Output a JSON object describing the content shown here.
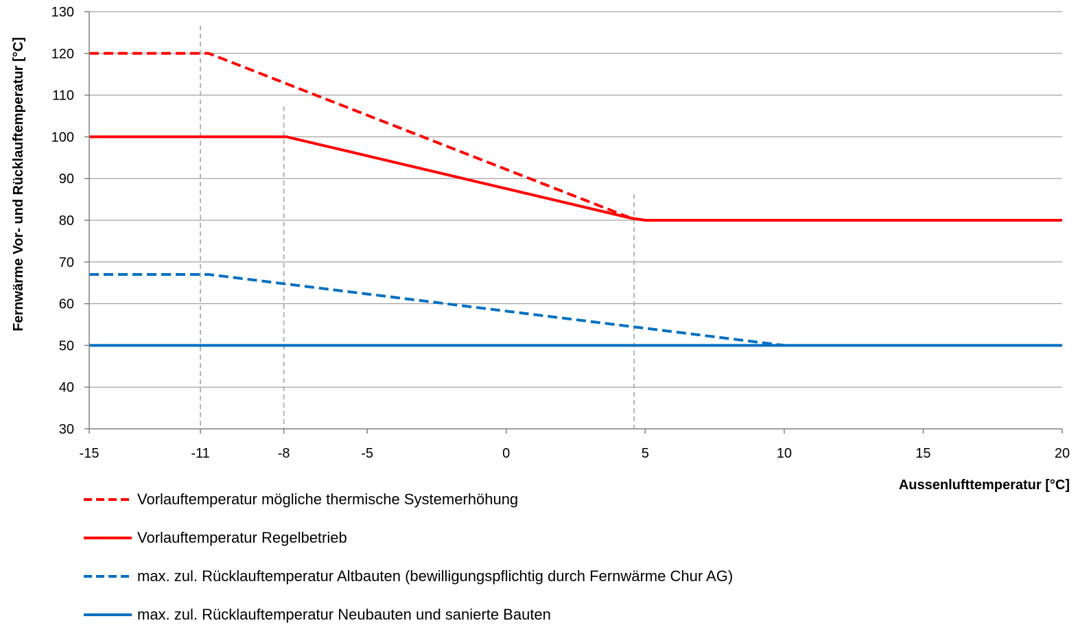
{
  "chart_data": {
    "type": "line",
    "xlabel": "Aussenlufttemperatur [°C]",
    "ylabel": "Fernwärme Vor- und Rücklauftemperatur [°C]",
    "xlim": [
      -15,
      20
    ],
    "ylim": [
      30,
      130
    ],
    "x_ticks": [
      "-15",
      "-11",
      "-8",
      "-5",
      "0",
      "5",
      "10",
      "15",
      "20"
    ],
    "y_ticks": [
      "30",
      "40",
      "50",
      "60",
      "70",
      "80",
      "90",
      "100",
      "110",
      "120",
      "130"
    ],
    "grid": "horizontal",
    "reference_lines_x": [
      -11,
      -8,
      4.6
    ],
    "series": [
      {
        "name": "Vorlauftemperatur mögliche thermische Systemerhöhung",
        "color": "#ff0000",
        "style": "dashed",
        "points": [
          [
            -15,
            120
          ],
          [
            -10.7,
            120
          ],
          [
            4.5,
            80.5
          ],
          [
            5,
            80
          ]
        ]
      },
      {
        "name": "Vorlauftemperatur Regelbetrieb",
        "color": "#ff0000",
        "style": "solid",
        "points": [
          [
            -15,
            100
          ],
          [
            -7.9,
            100
          ],
          [
            4.5,
            80.5
          ],
          [
            5,
            80
          ],
          [
            20,
            80
          ]
        ]
      },
      {
        "name": "max. zul. Rücklauftemperatur Altbauten (bewilligungspflichtig durch Fernwärme Chur AG)",
        "color": "#0070c0",
        "style": "dashed",
        "points": [
          [
            -15,
            67
          ],
          [
            -10.7,
            67
          ],
          [
            10,
            50
          ]
        ]
      },
      {
        "name": "max. zul. Rücklauftemperatur Neubauten und sanierte Bauten",
        "color": "#0070c0",
        "style": "solid",
        "points": [
          [
            -15,
            50
          ],
          [
            20,
            50
          ]
        ]
      }
    ]
  }
}
